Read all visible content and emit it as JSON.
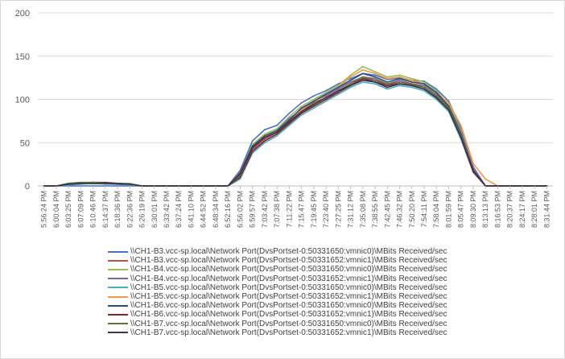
{
  "chart_data": {
    "type": "line",
    "title": "",
    "xlabel": "",
    "ylabel": "",
    "ylim": [
      0,
      200
    ],
    "y_ticks": [
      0,
      50,
      100,
      150,
      200
    ],
    "grid": true,
    "legend_position": "bottom",
    "x_tick_labels": [
      "5:56:24 PM",
      "6:00:04 PM",
      "6:03:25 PM",
      "6:07:09 PM",
      "6:10:46 PM",
      "6:14:37 PM",
      "6:18:36 PM",
      "6:22:36 PM",
      "6:26:19 PM",
      "6:30:01 PM",
      "6:33:42 PM",
      "6:37:24 PM",
      "6:41:10 PM",
      "6:44:52 PM",
      "6:48:34 PM",
      "6:52:16 PM",
      "6:56:02 PM",
      "6:59:57 PM",
      "7:03:42 PM",
      "7:07:38 PM",
      "7:11:22 PM",
      "7:15:47 PM",
      "7:19:45 PM",
      "7:23:40 PM",
      "7:27:25 PM",
      "7:31:12 PM",
      "7:35:08 PM",
      "7:38:55 PM",
      "7:42:45 PM",
      "7:46:32 PM",
      "7:50:20 PM",
      "7:54:11 PM",
      "7:58:04 PM",
      "8:01:59 PM",
      "8:05:47 PM",
      "8:09:30 PM",
      "8:13:13 PM",
      "8:16:53 PM",
      "8:20:37 PM",
      "8:24:17 PM",
      "8:28:01 PM",
      "8:31:44 PM"
    ],
    "series": [
      {
        "name": "\\\\CH1-B3.vcc-sp.local\\Network Port(DvsPortset-0:50331650:vmnic0)\\MBits Received/sec",
        "color": "#4472c4",
        "values": [
          0,
          0,
          0,
          0,
          0,
          0,
          0,
          0,
          0,
          0,
          0,
          0,
          0,
          0,
          0,
          0,
          18,
          52,
          65,
          70,
          84,
          96,
          104,
          110,
          118,
          124,
          130,
          128,
          123,
          125,
          122,
          121,
          112,
          98,
          67,
          22,
          0,
          0,
          0,
          0,
          0,
          0
        ]
      },
      {
        "name": "\\\\CH1-B3.vcc-sp.local\\Network Port(DvsPortset-0:50331652:vmnic1)\\MBits Received/sec",
        "color": "#c0504d",
        "values": [
          0,
          0,
          2,
          3,
          3,
          3,
          3,
          2,
          0,
          0,
          0,
          0,
          0,
          0,
          0,
          0,
          10,
          42,
          54,
          62,
          74,
          84,
          94,
          102,
          108,
          118,
          124,
          122,
          116,
          120,
          117,
          114,
          104,
          90,
          58,
          18,
          0,
          0,
          0,
          0,
          0,
          0
        ]
      },
      {
        "name": "\\\\CH1-B4.vcc-sp.local\\Network Port(DvsPortset-0:50331650:vmnic0)\\MBits Received/sec",
        "color": "#9bbb59",
        "values": [
          0,
          0,
          3,
          4,
          4,
          4,
          3,
          3,
          0,
          0,
          0,
          0,
          0,
          0,
          0,
          0,
          14,
          48,
          60,
          66,
          80,
          92,
          100,
          108,
          116,
          128,
          138,
          132,
          126,
          128,
          124,
          120,
          110,
          94,
          64,
          20,
          0,
          0,
          0,
          0,
          0,
          0
        ]
      },
      {
        "name": "\\\\CH1-B4.vcc-sp.local\\Network Port(DvsPortset-0:50331652:vmnic1)\\MBits Received/sec",
        "color": "#8064a2",
        "values": [
          0,
          0,
          2,
          3,
          4,
          3,
          3,
          2,
          0,
          0,
          0,
          0,
          0,
          0,
          0,
          0,
          16,
          46,
          58,
          64,
          78,
          88,
          98,
          104,
          112,
          120,
          126,
          124,
          118,
          122,
          118,
          116,
          106,
          92,
          62,
          20,
          0,
          0,
          0,
          0,
          0,
          0
        ]
      },
      {
        "name": "\\\\CH1-B5.vcc-sp.local\\Network Port(DvsPortset-0:50331650:vmnic0)\\MBits Received/sec",
        "color": "#4bacc6",
        "values": [
          0,
          0,
          1,
          2,
          3,
          2,
          2,
          1,
          0,
          0,
          0,
          0,
          0,
          0,
          0,
          0,
          8,
          38,
          50,
          58,
          70,
          82,
          90,
          98,
          106,
          114,
          120,
          118,
          112,
          116,
          114,
          110,
          100,
          86,
          54,
          16,
          0,
          0,
          0,
          0,
          0,
          0
        ]
      },
      {
        "name": "\\\\CH1-B5.vcc-sp.local\\Network Port(DvsPortset-0:50331652:vmnic1)\\MBits Received/sec",
        "color": "#f79646",
        "values": [
          0,
          0,
          3,
          4,
          4,
          3,
          3,
          2,
          0,
          0,
          0,
          0,
          0,
          0,
          0,
          0,
          12,
          44,
          56,
          64,
          76,
          88,
          96,
          106,
          114,
          126,
          134,
          130,
          124,
          126,
          122,
          118,
          108,
          96,
          70,
          26,
          8,
          0,
          0,
          0,
          0,
          0
        ]
      },
      {
        "name": "\\\\CH1-B6.vcc-sp.local\\Network Port(DvsPortset-0:50331650:vmnic0)\\MBits Received/sec",
        "color": "#2c4d75",
        "values": [
          0,
          0,
          2,
          3,
          3,
          3,
          2,
          2,
          0,
          0,
          0,
          0,
          0,
          0,
          0,
          0,
          14,
          46,
          58,
          64,
          76,
          90,
          98,
          106,
          114,
          122,
          130,
          126,
          120,
          124,
          120,
          118,
          108,
          92,
          60,
          18,
          0,
          0,
          0,
          0,
          0,
          0
        ]
      },
      {
        "name": "\\\\CH1-B6.vcc-sp.local\\Network Port(DvsPortset-0:50331652:vmnic1)\\MBits Received/sec",
        "color": "#772c2a",
        "values": [
          0,
          0,
          2,
          3,
          4,
          4,
          3,
          2,
          0,
          0,
          0,
          0,
          0,
          0,
          0,
          0,
          10,
          40,
          52,
          60,
          72,
          84,
          92,
          100,
          108,
          116,
          124,
          120,
          116,
          118,
          116,
          112,
          102,
          88,
          56,
          16,
          0,
          0,
          0,
          0,
          0,
          0
        ]
      },
      {
        "name": "\\\\CH1-B7.vcc-sp.local\\Network Port(DvsPortset-0:50331650:vmnic0)\\MBits Received/sec",
        "color": "#5f7530",
        "values": [
          0,
          0,
          3,
          4,
          4,
          3,
          3,
          2,
          0,
          0,
          0,
          0,
          0,
          0,
          0,
          0,
          12,
          44,
          56,
          62,
          74,
          86,
          96,
          102,
          110,
          118,
          126,
          122,
          118,
          120,
          118,
          114,
          104,
          90,
          58,
          18,
          0,
          0,
          0,
          0,
          0,
          0
        ]
      },
      {
        "name": "\\\\CH1-B7.vcc-sp.local\\Network Port(DvsPortset-0:50331652:vmnic1)\\MBits Received/sec",
        "color": "#403152",
        "values": [
          0,
          0,
          2,
          3,
          3,
          3,
          3,
          2,
          0,
          0,
          0,
          0,
          0,
          0,
          0,
          0,
          14,
          44,
          56,
          62,
          74,
          86,
          94,
          102,
          110,
          116,
          122,
          120,
          114,
          118,
          116,
          112,
          102,
          88,
          56,
          18,
          0,
          0,
          0,
          0,
          0,
          0
        ]
      }
    ]
  }
}
